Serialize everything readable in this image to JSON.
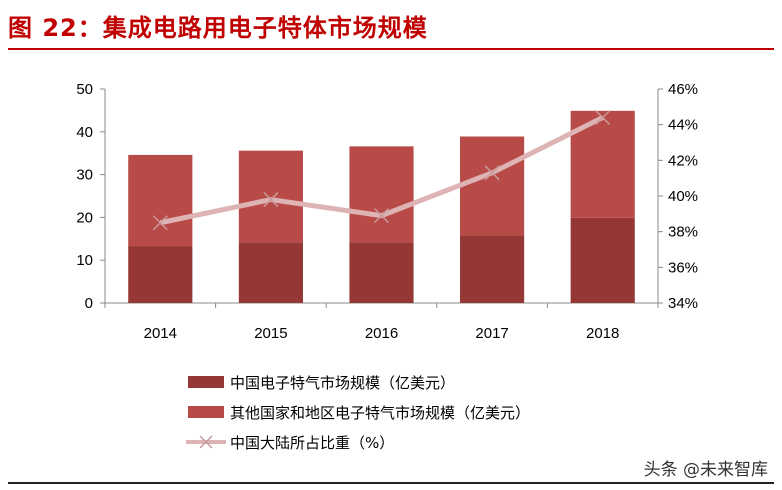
{
  "title": "图 22：集成电路用电子特体市场规模",
  "watermark": "头条 @未来智库",
  "chart_data": {
    "type": "bar",
    "stacked": true,
    "categories": [
      "2014",
      "2015",
      "2016",
      "2017",
      "2018"
    ],
    "series": [
      {
        "name": "中国电子特气市场规模（亿美元）",
        "kind": "bar",
        "axis": "left",
        "color": "#953735",
        "values": [
          13.3,
          14.2,
          14.2,
          15.8,
          19.9
        ]
      },
      {
        "name": "其他国家和地区电子特气市场规模（亿美元）",
        "kind": "bar",
        "axis": "left",
        "color": "#b84a48",
        "values": [
          21.3,
          21.4,
          22.4,
          23.1,
          25.0
        ]
      },
      {
        "name": "中国大陆所占比重（%）",
        "kind": "line",
        "axis": "right",
        "color": "#ddb3b3",
        "values": [
          38.5,
          39.8,
          38.9,
          41.3,
          44.4
        ]
      }
    ],
    "yleft": {
      "range": [
        0,
        50
      ],
      "ticks": [
        "0",
        "10",
        "20",
        "30",
        "40",
        "50"
      ]
    },
    "yright": {
      "range": [
        34,
        46
      ],
      "ticks": [
        "34%",
        "36%",
        "38%",
        "40%",
        "42%",
        "44%",
        "46%"
      ]
    },
    "grid": false,
    "legend": "bottom"
  }
}
